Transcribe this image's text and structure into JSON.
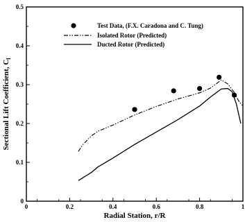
{
  "chart_data": {
    "type": "line",
    "title": "",
    "xlabel": "Radial Station, r/R",
    "ylabel": "Sectional Lift Coefficient, C",
    "ylabel_subscript": "l",
    "xlim": [
      0,
      1
    ],
    "ylim": [
      0,
      0.5
    ],
    "x_ticks": [
      "0",
      "0.2",
      "0.4",
      "0.6",
      "0.8",
      "1"
    ],
    "y_ticks": [
      "0",
      "0.1",
      "0.2",
      "0.3",
      "0.4",
      "0.5"
    ],
    "grid": false,
    "legend_position": "top-right",
    "series": [
      {
        "name": "Test Data, (F.X. Caradona and C. Tung)",
        "style": "markers",
        "color": "#000000",
        "x": [
          0.5,
          0.68,
          0.8,
          0.89,
          0.96
        ],
        "y": [
          0.236,
          0.284,
          0.29,
          0.319,
          0.273
        ]
      },
      {
        "name": "Isolated Rotor (Predicted)",
        "style": "dash-dot-dot",
        "color": "#000000",
        "x": [
          0.24,
          0.26,
          0.3,
          0.33,
          0.4,
          0.5,
          0.6,
          0.7,
          0.8,
          0.85,
          0.9,
          0.93,
          0.96,
          0.98,
          1.0
        ],
        "y": [
          0.128,
          0.145,
          0.168,
          0.18,
          0.196,
          0.222,
          0.244,
          0.263,
          0.279,
          0.291,
          0.312,
          0.302,
          0.28,
          0.258,
          0.245
        ]
      },
      {
        "name": "Ducted Rotor (Predicted)",
        "style": "solid",
        "color": "#000000",
        "x": [
          0.24,
          0.3,
          0.33,
          0.4,
          0.5,
          0.6,
          0.7,
          0.8,
          0.85,
          0.9,
          0.93,
          0.95,
          0.97,
          0.99
        ],
        "y": [
          0.053,
          0.074,
          0.088,
          0.111,
          0.146,
          0.178,
          0.21,
          0.245,
          0.268,
          0.289,
          0.29,
          0.282,
          0.25,
          0.2
        ]
      }
    ]
  }
}
